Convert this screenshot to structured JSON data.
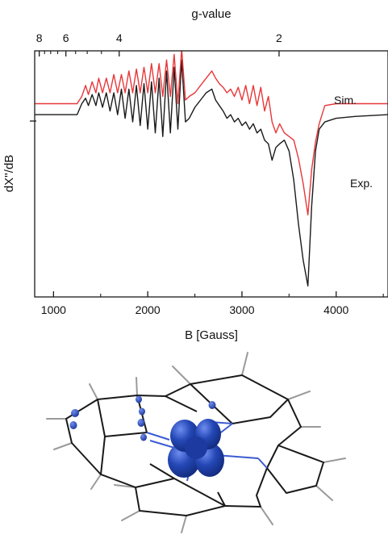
{
  "chart_data": {
    "type": "line",
    "title": "",
    "top_axis": {
      "label": "g-value",
      "ticks": [
        {
          "label": "8",
          "g": 8
        },
        {
          "label": "6",
          "g": 6
        },
        {
          "label": "4",
          "g": 4
        },
        {
          "label": "2",
          "g": 2
        }
      ],
      "minor_ticks_g": [
        7.5,
        7,
        6.5,
        5.5,
        5,
        4.5
      ]
    },
    "xlabel": "B [Gauss]",
    "ylabel": "dX''/dB",
    "xlim": [
      800,
      4550
    ],
    "ylim": [
      -1.0,
      0.35
    ],
    "x_ticks": [
      {
        "label": "1000",
        "value": 1000
      },
      {
        "label": "2000",
        "value": 2000
      },
      {
        "label": "3000",
        "value": 3000
      },
      {
        "label": "4000",
        "value": 4000
      }
    ],
    "grid": false,
    "legend": "inline labels right",
    "series": [
      {
        "name": "Sim.",
        "color": "#e8373a",
        "x": [
          800,
          1250,
          1300,
          1340,
          1370,
          1410,
          1450,
          1480,
          1520,
          1560,
          1600,
          1640,
          1680,
          1720,
          1760,
          1800,
          1840,
          1880,
          1920,
          1960,
          2000,
          2040,
          2080,
          2120,
          2160,
          2200,
          2240,
          2280,
          2320,
          2360,
          2400,
          2440,
          2500,
          2560,
          2620,
          2680,
          2720,
          2760,
          2800,
          2840,
          2880,
          2920,
          2960,
          3000,
          3040,
          3080,
          3120,
          3160,
          3200,
          3240,
          3280,
          3320,
          3360,
          3400,
          3450,
          3500,
          3550,
          3600,
          3650,
          3700,
          3740,
          3780,
          3820,
          3880,
          4000,
          4200,
          4550
        ],
        "y": [
          0.06,
          0.06,
          0.1,
          0.16,
          0.11,
          0.18,
          0.12,
          0.2,
          0.12,
          0.2,
          0.12,
          0.22,
          0.12,
          0.22,
          0.12,
          0.24,
          0.12,
          0.25,
          0.12,
          0.26,
          0.12,
          0.28,
          0.12,
          0.28,
          0.1,
          0.3,
          0.1,
          0.33,
          0.06,
          0.36,
          0.08,
          0.1,
          0.12,
          0.16,
          0.2,
          0.24,
          0.2,
          0.17,
          0.15,
          0.12,
          0.14,
          0.1,
          0.15,
          0.08,
          0.16,
          0.06,
          0.16,
          0.05,
          0.15,
          0.02,
          0.1,
          -0.04,
          -0.1,
          -0.05,
          -0.1,
          -0.12,
          -0.14,
          -0.24,
          -0.38,
          -0.55,
          -0.3,
          -0.15,
          -0.05,
          0.05,
          0.06,
          0.06,
          0.06
        ]
      },
      {
        "name": "Exp.",
        "color": "#1a1a1a",
        "x": [
          800,
          1250,
          1300,
          1340,
          1370,
          1410,
          1450,
          1480,
          1520,
          1560,
          1600,
          1640,
          1680,
          1720,
          1760,
          1800,
          1840,
          1880,
          1920,
          1960,
          2000,
          2040,
          2080,
          2120,
          2160,
          2200,
          2240,
          2280,
          2320,
          2360,
          2400,
          2440,
          2500,
          2560,
          2620,
          2680,
          2720,
          2760,
          2800,
          2840,
          2880,
          2920,
          2960,
          3000,
          3040,
          3080,
          3120,
          3160,
          3200,
          3240,
          3280,
          3320,
          3360,
          3400,
          3450,
          3500,
          3550,
          3600,
          3650,
          3700,
          3740,
          3780,
          3820,
          3880,
          4000,
          4200,
          4550
        ],
        "y": [
          0.0,
          0.0,
          0.06,
          0.09,
          0.05,
          0.11,
          0.05,
          0.12,
          0.04,
          0.12,
          0.02,
          0.12,
          0.0,
          0.14,
          -0.02,
          0.14,
          -0.04,
          0.16,
          -0.06,
          0.17,
          -0.08,
          0.18,
          -0.1,
          0.2,
          -0.12,
          0.24,
          -0.1,
          0.26,
          -0.08,
          0.3,
          -0.04,
          -0.02,
          0.04,
          0.08,
          0.12,
          0.14,
          0.08,
          0.05,
          0.02,
          -0.02,
          0.0,
          -0.04,
          -0.02,
          -0.06,
          -0.04,
          -0.08,
          -0.05,
          -0.1,
          -0.08,
          -0.14,
          -0.16,
          -0.25,
          -0.18,
          -0.16,
          -0.14,
          -0.2,
          -0.36,
          -0.6,
          -0.8,
          -0.94,
          -0.5,
          -0.2,
          -0.08,
          -0.04,
          -0.02,
          -0.01,
          0.0
        ]
      }
    ],
    "annotations": [
      {
        "text": "Sim.",
        "color": "#e8373a"
      },
      {
        "text": "Exp.",
        "color": "#1a1a1a"
      }
    ]
  },
  "molecule_image": {
    "bond_color": "#1a1a1a",
    "metal_bond_color": "#3c5bd1",
    "hydrogen_color": "#9a9a9a",
    "spin_density_color": "#2447b5"
  }
}
